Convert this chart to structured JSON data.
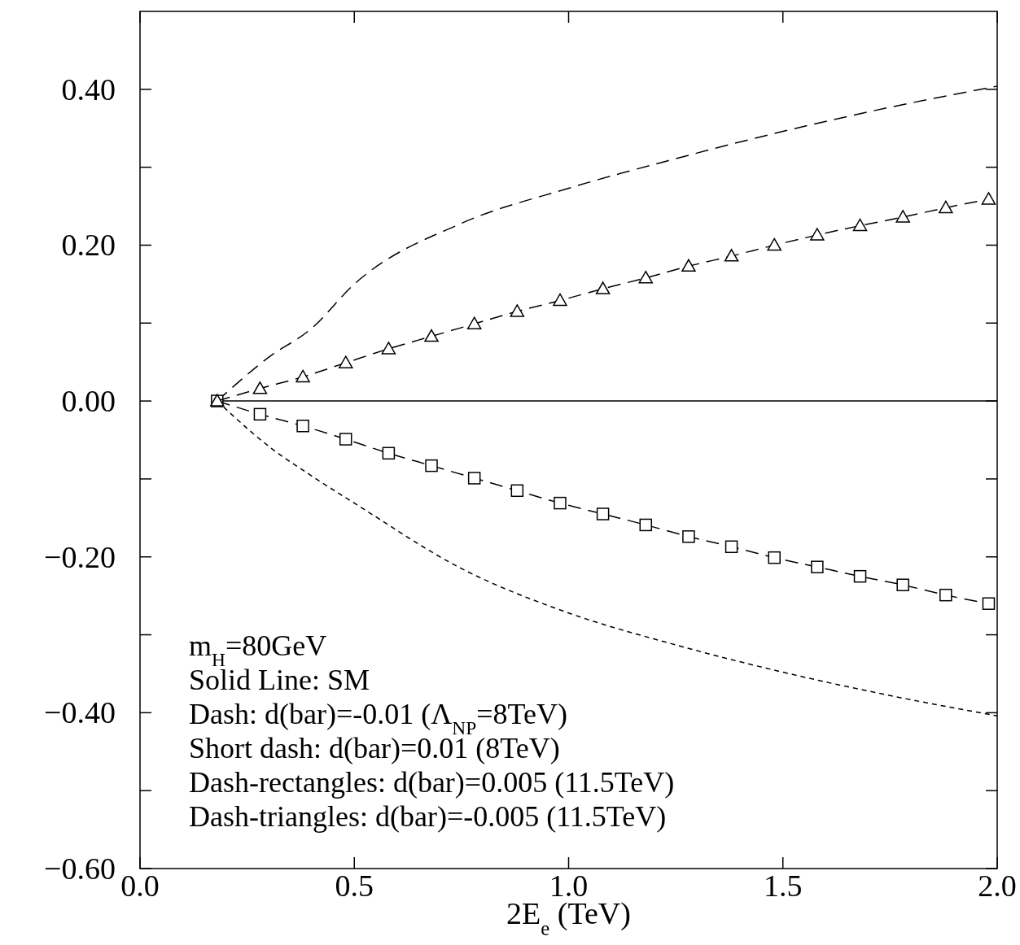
{
  "chart_data": {
    "type": "line",
    "xlabel": "2E$_{e}$ (TeV)",
    "xlim": [
      0,
      2
    ],
    "ylim": [
      -0.6,
      0.5
    ],
    "xticks": [
      {
        "value": 0,
        "label": "0.0"
      },
      {
        "value": 0.5,
        "label": "0.5"
      },
      {
        "value": 1,
        "label": "1.0"
      },
      {
        "value": 1.5,
        "label": "1.5"
      },
      {
        "value": 2,
        "label": "2.0"
      }
    ],
    "yticks": [
      {
        "value": -0.6,
        "label": "−0.60"
      },
      {
        "value": -0.5,
        "label": null
      },
      {
        "value": -0.4,
        "label": "−0.40"
      },
      {
        "value": -0.3,
        "label": null
      },
      {
        "value": -0.2,
        "label": "−0.20"
      },
      {
        "value": -0.1,
        "label": null
      },
      {
        "value": 0,
        "label": "0.00"
      },
      {
        "value": 0.1,
        "label": null
      },
      {
        "value": 0.2,
        "label": "0.20"
      },
      {
        "value": 0.3,
        "label": null
      },
      {
        "value": 0.4,
        "label": "0.40"
      }
    ],
    "grid": false,
    "series": [
      {
        "color": "#000000",
        "line_style": "solid",
        "x": [
          0.18,
          2.0
        ],
        "values": [
          0,
          0
        ]
      },
      {
        "color": "#000000",
        "line_style": "dashed",
        "x": [
          0.18,
          0.3,
          0.4,
          0.5,
          0.75,
          1.0,
          1.25,
          1.5,
          1.75,
          2.0
        ],
        "values": [
          0,
          0.056,
          0.093,
          0.15,
          0.228,
          0.273,
          0.311,
          0.346,
          0.377,
          0.404
        ]
      },
      {
        "color": "#000000",
        "line_style": "dotted",
        "x": [
          0.18,
          0.3,
          0.4,
          0.5,
          0.75,
          1.0,
          1.25,
          1.5,
          1.75,
          2.0
        ],
        "values": [
          0,
          -0.058,
          -0.096,
          -0.131,
          -0.215,
          -0.272,
          -0.313,
          -0.348,
          -0.378,
          -0.404
        ]
      },
      {
        "color": "#000000",
        "line_style": "dashed",
        "marker": "square",
        "x": [
          0.18,
          0.28,
          0.38,
          0.48,
          0.58,
          0.68,
          0.78,
          0.88,
          0.98,
          1.08,
          1.18,
          1.28,
          1.38,
          1.48,
          1.58,
          1.68,
          1.78,
          1.88,
          1.98
        ],
        "values": [
          0,
          -0.017,
          -0.032,
          -0.049,
          -0.067,
          -0.083,
          -0.099,
          -0.115,
          -0.131,
          -0.145,
          -0.159,
          -0.174,
          -0.187,
          -0.201,
          -0.213,
          -0.225,
          -0.236,
          -0.249,
          -0.26
        ]
      },
      {
        "color": "#000000",
        "line_style": "dashed",
        "marker": "triangle",
        "x": [
          0.18,
          0.28,
          0.38,
          0.48,
          0.58,
          0.68,
          0.78,
          0.88,
          0.98,
          1.08,
          1.18,
          1.28,
          1.38,
          1.48,
          1.58,
          1.68,
          1.78,
          1.88,
          1.98
        ],
        "values": [
          0,
          0.016,
          0.031,
          0.049,
          0.067,
          0.083,
          0.099,
          0.115,
          0.129,
          0.144,
          0.158,
          0.173,
          0.186,
          0.2,
          0.213,
          0.225,
          0.236,
          0.248,
          0.259
        ]
      }
    ],
    "annotations": [
      "m$_{H}$=80GeV",
      "Solid Line: SM",
      "Dash: d(bar)=-0.01 (Λ$_{NP}$=8TeV)",
      "Short dash: d(bar)=0.01 (8TeV)",
      "Dash-rectangles: d(bar)=0.005 (11.5TeV)",
      "Dash-triangles: d(bar)=-0.005 (11.5TeV)"
    ]
  }
}
